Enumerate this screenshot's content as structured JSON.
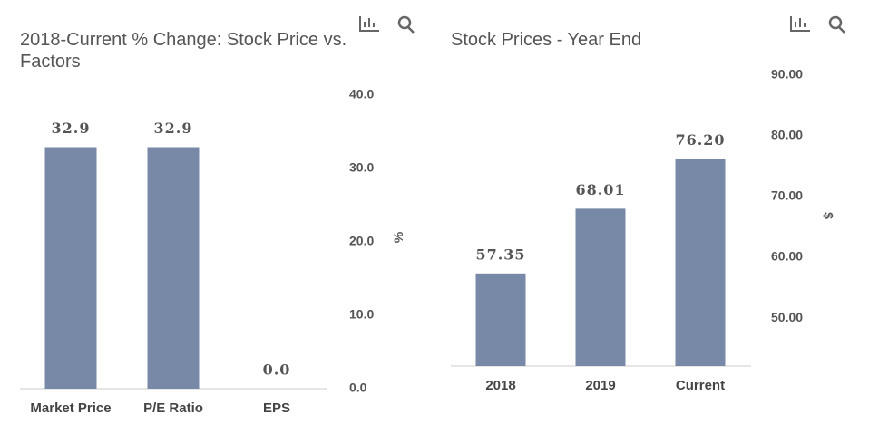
{
  "chart_data": [
    {
      "type": "bar",
      "title": "2018-Current % Change: Stock Price vs. Factors",
      "categories": [
        "Market Price",
        "P/E Ratio",
        "EPS"
      ],
      "values": [
        32.9,
        32.9,
        0.0
      ],
      "value_labels": [
        "32.9",
        "32.9",
        "0.0"
      ],
      "color": "#7889a7",
      "ylabel": "%",
      "ylim": [
        0,
        40
      ],
      "yticks": [
        {
          "value": 0,
          "label": "0.0"
        },
        {
          "value": 10,
          "label": "10.0"
        },
        {
          "value": 20,
          "label": "20.0"
        },
        {
          "value": 30,
          "label": "30.0"
        },
        {
          "value": 40,
          "label": "40.0"
        }
      ]
    },
    {
      "type": "bar",
      "title": "Stock Prices - Year End",
      "categories": [
        "2018",
        "2019",
        "Current"
      ],
      "values": [
        57.35,
        68.01,
        76.2
      ],
      "value_labels": [
        "57.35",
        "68.01",
        "76.20"
      ],
      "color": "#7889a7",
      "ylabel": "$",
      "ylim": [
        42.1,
        90
      ],
      "yticks": [
        {
          "value": 50,
          "label": "50.00"
        },
        {
          "value": 60,
          "label": "60.00"
        },
        {
          "value": 70,
          "label": "70.00"
        },
        {
          "value": 80,
          "label": "80.00"
        },
        {
          "value": 90,
          "label": "90.00"
        }
      ]
    }
  ]
}
